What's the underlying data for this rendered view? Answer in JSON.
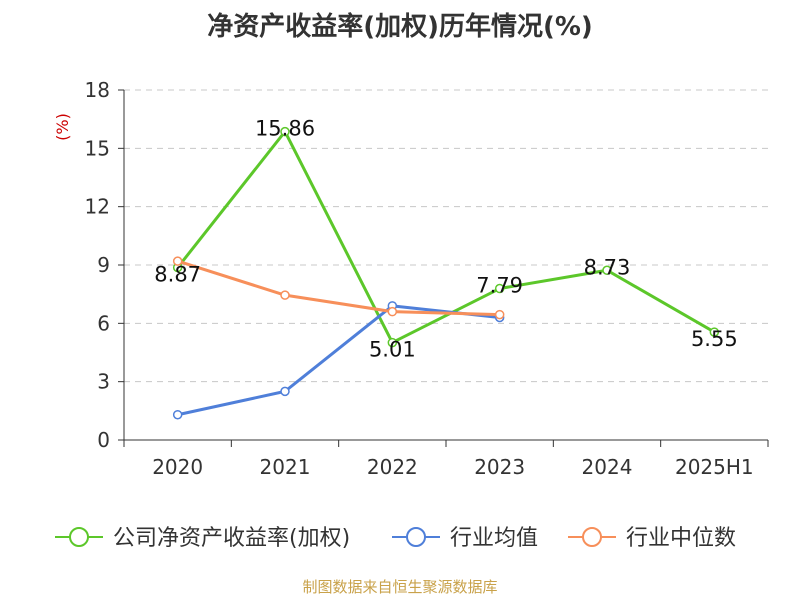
{
  "chart_data": {
    "type": "line",
    "title": "净资产收益率(加权)历年情况(%)",
    "ylabel": "(%)",
    "ylabel_color": "#cc0000",
    "categories": [
      "2020",
      "2021",
      "2022",
      "2023",
      "2024",
      "2025H1"
    ],
    "ylim": [
      0,
      18
    ],
    "yticks": [
      0,
      3,
      6,
      9,
      12,
      15,
      18
    ],
    "grid": true,
    "legend_position": "bottom",
    "series": [
      {
        "name": "公司净资产收益率(加权)",
        "color": "#5cc72a",
        "values": [
          8.87,
          15.86,
          5.01,
          7.79,
          8.73,
          5.55
        ],
        "labels": [
          "8.87",
          "15.86",
          "5.01",
          "7.79",
          "8.73",
          "5.55"
        ]
      },
      {
        "name": "行业均值",
        "color": "#4f7fd9",
        "values": [
          1.3,
          2.5,
          6.9,
          6.3,
          null,
          null
        ]
      },
      {
        "name": "行业中位数",
        "color": "#f78f5a",
        "values": [
          9.2,
          7.45,
          6.6,
          6.45,
          null,
          null
        ]
      }
    ]
  },
  "footer": {
    "source": "制图数据来自恒生聚源数据库"
  }
}
